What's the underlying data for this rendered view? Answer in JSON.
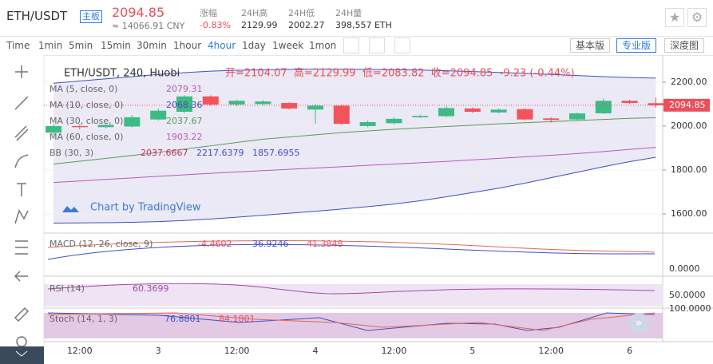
{
  "header": {
    "pair": "ETH/USDT",
    "badge": "主板",
    "price": "2094.85",
    "cny": "≈ 14066.91 CNY",
    "stats": [
      {
        "label": "涨幅",
        "value": "-0.83%"
      },
      {
        "label": "24H高",
        "value": "2129.99"
      },
      {
        "label": "24H低",
        "value": "2002.27"
      },
      {
        "label": "24H量",
        "value": "398,557 ETH"
      }
    ]
  },
  "toolbar": {
    "intervals": [
      "Time",
      "1min",
      "5min",
      "15min",
      "30min",
      "1hour",
      "4hour",
      "1day",
      "1week",
      "1mon"
    ],
    "active": "4hour",
    "versions": [
      "基本版",
      "专业版",
      "深度图"
    ]
  },
  "legend": {
    "symbol": "ETH/USDT, 240, Huobi",
    "ohlc": "开=2104.07  高=2129.99  低=2083.82  收=2094.85  -9.23 (-0.44%)",
    "indicators": [
      {
        "name": "MA (5, close, 0)",
        "values": [
          "2079.31"
        ]
      },
      {
        "name": "MA (10, close, 0)",
        "values": [
          "2068.36"
        ]
      },
      {
        "name": "MA (30, close, 0)",
        "values": [
          "2037.67"
        ]
      },
      {
        "name": "MA (60, close, 0)",
        "values": [
          "1903.22"
        ]
      },
      {
        "name": "BB (30, 3)",
        "values": [
          "2037.6667",
          "2217.6379",
          "1857.6955"
        ]
      }
    ]
  },
  "watermark": "Chart by TradingView",
  "chart_data": {
    "type": "candlestick",
    "open": [
      1970,
      2000,
      1995,
      1998,
      2030,
      2065,
      2135,
      2098,
      2100,
      2105,
      2075,
      2093,
      2000,
      2013,
      2040,
      2045,
      2080,
      2062,
      2077,
      2035,
      2030,
      2058,
      2115,
      2104.07
    ],
    "high": [
      2010,
      2008,
      2012,
      2050,
      2080,
      2140,
      2140,
      2120,
      2118,
      2110,
      2100,
      2098,
      2025,
      2040,
      2052,
      2090,
      2085,
      2080,
      2082,
      2040,
      2062,
      2125,
      2120,
      2129.99
    ],
    "low": [
      1960,
      1985,
      1990,
      1994,
      2025,
      2060,
      2092,
      2090,
      2095,
      2075,
      2010,
      2005,
      1995,
      2008,
      2036,
      2040,
      2060,
      2058,
      2025,
      2015,
      2025,
      2055,
      2100,
      2083.82
    ],
    "close": [
      2000,
      1995,
      2005,
      2040,
      2070,
      2135,
      2098,
      2115,
      2112,
      2080,
      2093,
      2010,
      2018,
      2033,
      2046,
      2082,
      2065,
      2075,
      2030,
      2028,
      2058,
      2115,
      2105,
      2094.85
    ],
    "series": [
      {
        "name": "BB upper",
        "color": "#3f4fc0",
        "values": [
          2195,
          2205,
          2215,
          2225,
          2235,
          2243,
          2250,
          2254,
          2256,
          2258,
          2259,
          2259,
          2258,
          2257,
          2255,
          2252,
          2248,
          2244,
          2240,
          2235,
          2230,
          2225,
          2221,
          2218
        ]
      },
      {
        "name": "BB lower",
        "color": "#3f4fc0",
        "values": [
          1558,
          1559,
          1560,
          1562,
          1565,
          1570,
          1577,
          1585,
          1594,
          1603,
          1612,
          1622,
          1633,
          1645,
          1660,
          1678,
          1697,
          1717,
          1740,
          1765,
          1790,
          1815,
          1838,
          1858
        ]
      },
      {
        "name": "MA 60",
        "color": "#b55bb8",
        "values": [
          1743,
          1750,
          1757,
          1764,
          1771,
          1778,
          1785,
          1791,
          1797,
          1803,
          1809,
          1815,
          1821,
          1827,
          1833,
          1839,
          1846,
          1853,
          1860,
          1867,
          1875,
          1884,
          1894,
          1903
        ]
      },
      {
        "name": "MA 30",
        "color": "#5a9a52",
        "values": [
          1827,
          1840,
          1853,
          1866,
          1880,
          1895,
          1910,
          1925,
          1940,
          1950,
          1960,
          1970,
          1978,
          1985,
          1992,
          1998,
          2004,
          2010,
          2015,
          2020,
          2025,
          2030,
          2035,
          2038
        ]
      }
    ],
    "up_color": "#3dbb84",
    "down_color": "#f2545b",
    "ylim": [
      1520,
      2265
    ],
    "yticks": [
      {
        "value": 1600,
        "label": "1600.00"
      },
      {
        "value": 1800,
        "label": "1800.00"
      },
      {
        "value": 2000,
        "label": "2000.00"
      },
      {
        "value": 2200,
        "label": "2200.00"
      }
    ],
    "last_price": {
      "value": 2094.85,
      "label": "2094.85"
    },
    "time_labels": [
      "12:00",
      "3",
      "12:00",
      "4",
      "12:00",
      "5",
      "12:00",
      "6"
    ]
  },
  "panes": [
    {
      "legend": "MACD (12, 26, close, 9)",
      "values": [
        "-4.4602",
        "36.9246",
        "41.3848"
      ],
      "axis": "0.0000"
    },
    {
      "legend": "RSI (14)",
      "values": [
        "60.3699"
      ],
      "axis": "50.0000"
    },
    {
      "legend": "Stoch (14, 1, 3)",
      "values": [
        "76.8801",
        "84.1801"
      ],
      "axis": "100.0000"
    }
  ]
}
